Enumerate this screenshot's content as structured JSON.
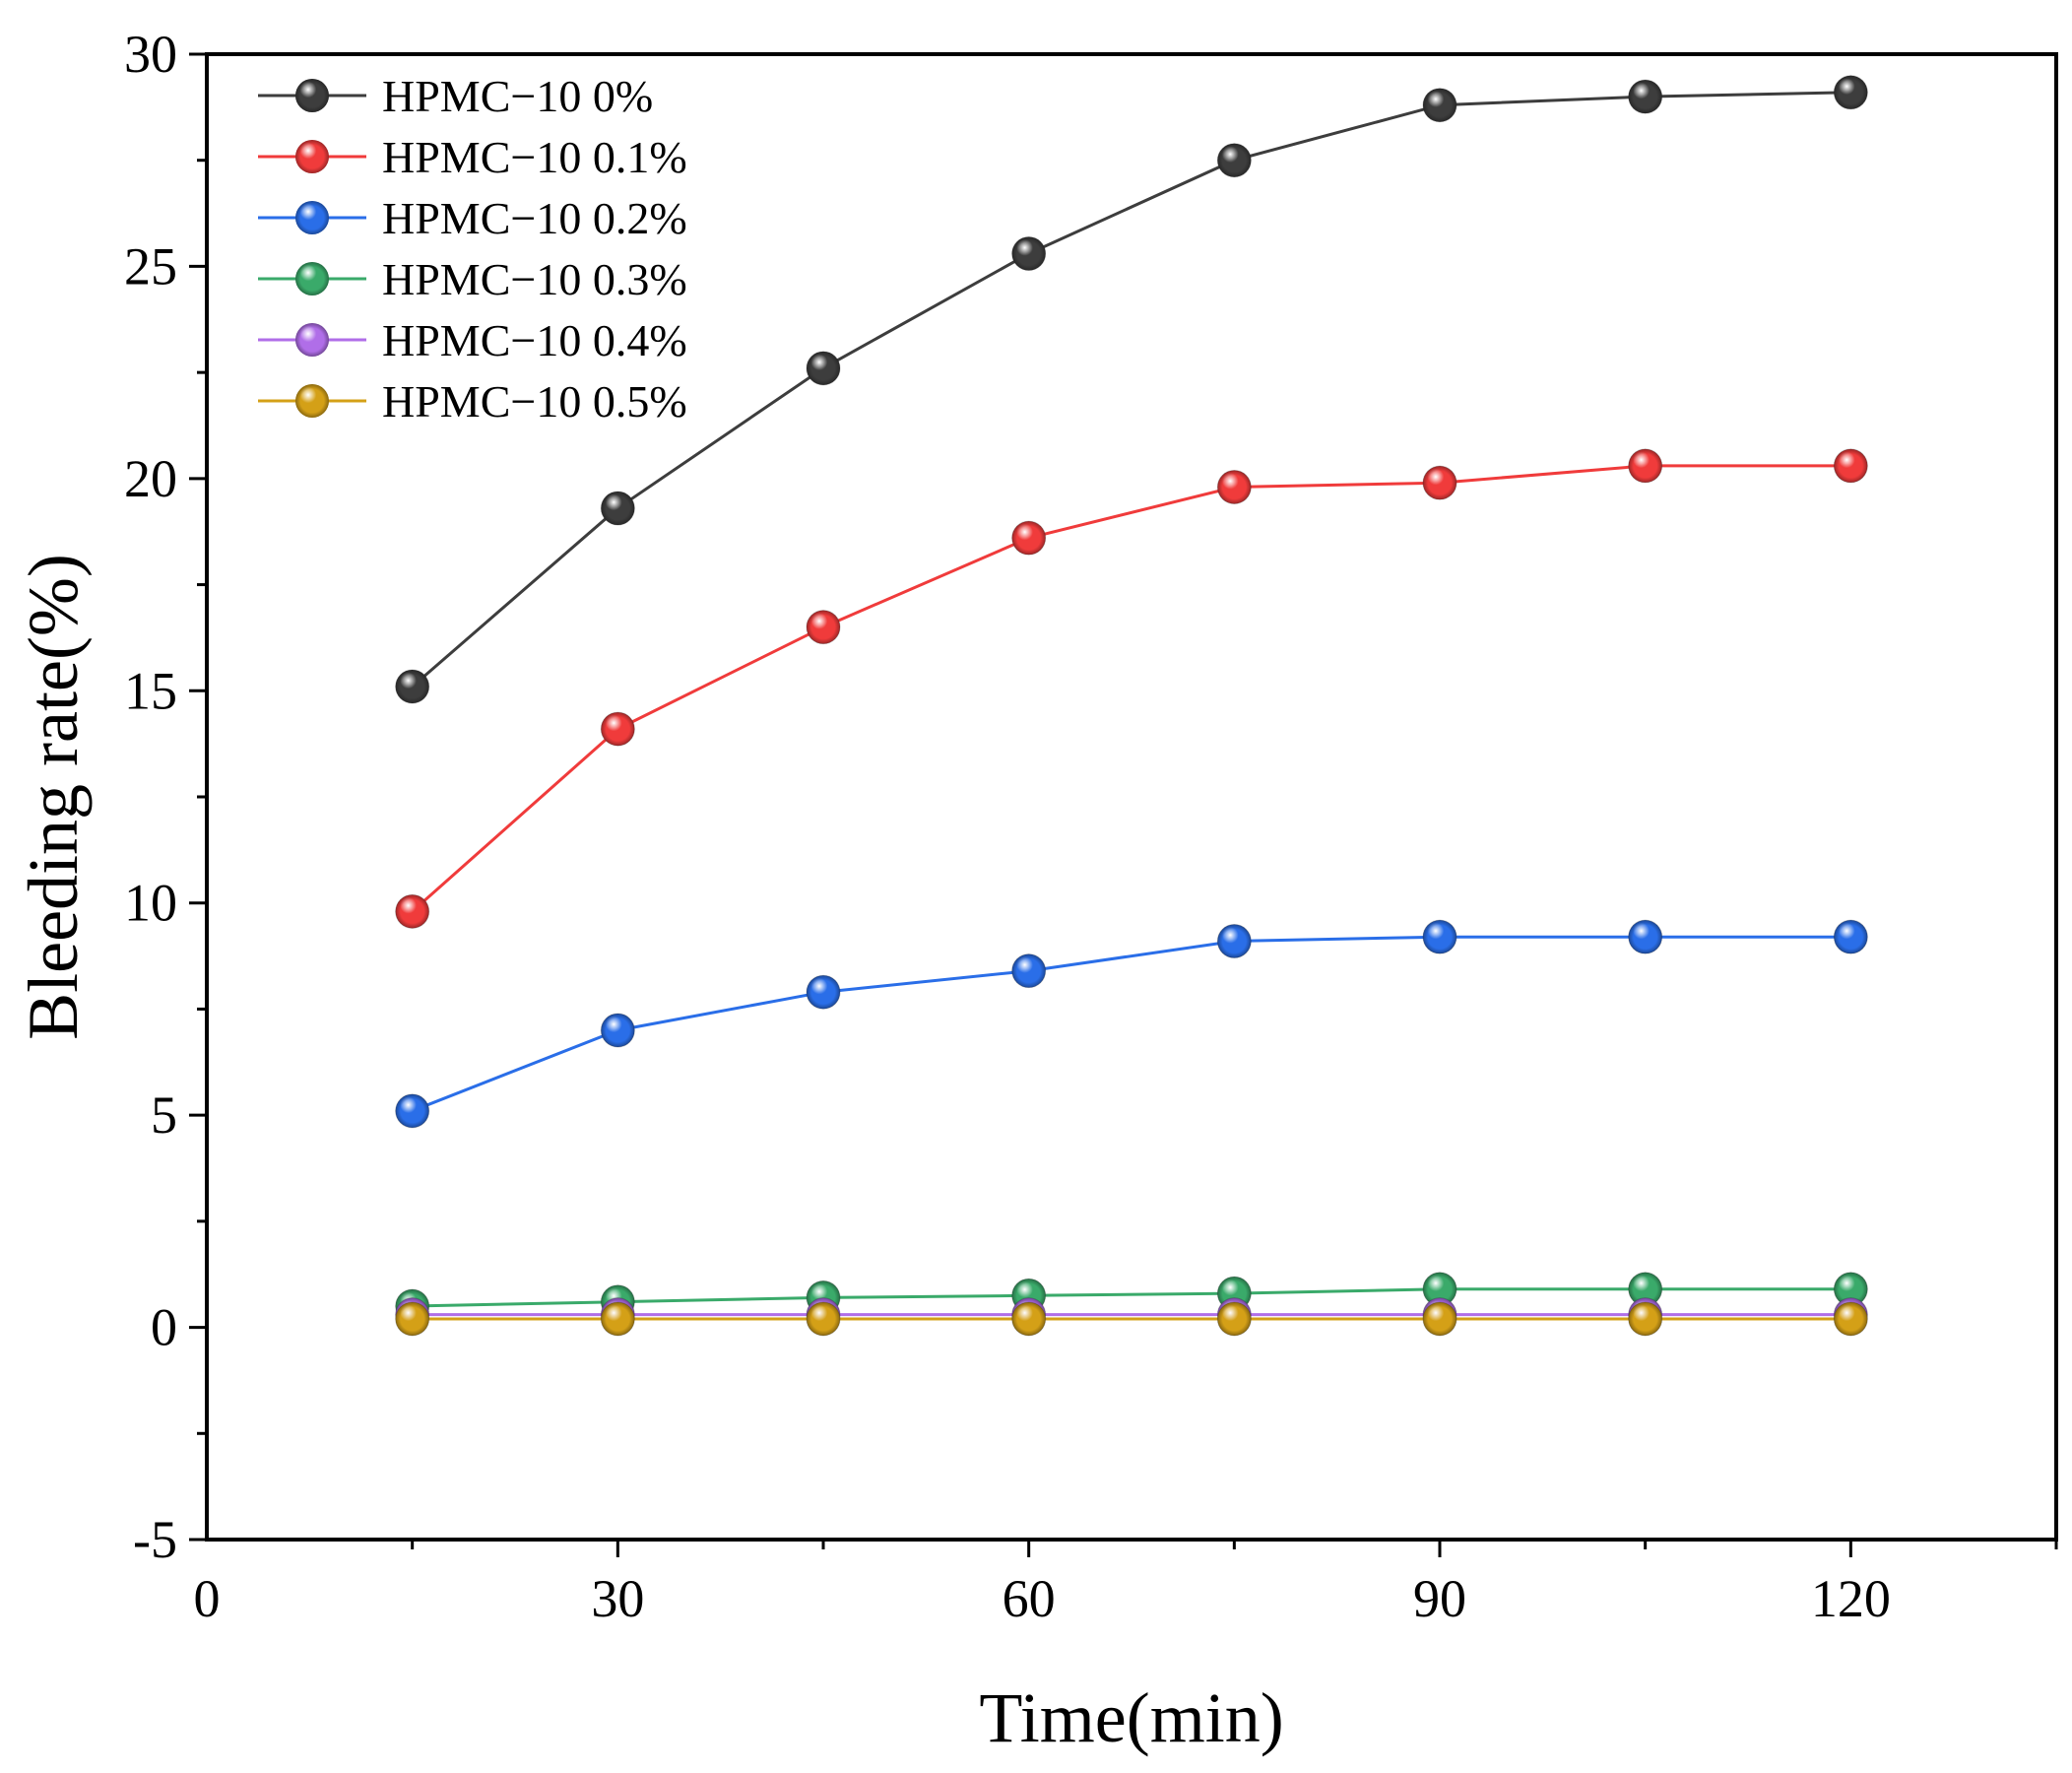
{
  "chart_data": {
    "type": "line",
    "title": "",
    "xlabel": "Time(min)",
    "ylabel": "Bleeding rate(%)",
    "xlim": [
      0,
      135
    ],
    "ylim": [
      -5,
      30
    ],
    "x_ticks": [
      0,
      30,
      60,
      90,
      120
    ],
    "x_tick_labels": [
      "0",
      "30",
      "60",
      "90",
      "120"
    ],
    "y_ticks": [
      -5,
      0,
      5,
      10,
      15,
      20,
      25,
      30
    ],
    "y_tick_labels": [
      "-5",
      "0",
      "5",
      "10",
      "15",
      "20",
      "25",
      "30"
    ],
    "grid": false,
    "legend_position": "top-left",
    "x": [
      15,
      30,
      45,
      60,
      75,
      90,
      105,
      120
    ],
    "series": [
      {
        "name": "HPMC−10 0%",
        "color": "#3d3d3d",
        "values": [
          15.1,
          19.3,
          22.6,
          25.3,
          27.5,
          28.8,
          29.0,
          29.1
        ]
      },
      {
        "name": "HPMC−10 0.1%",
        "color": "#f03b3b",
        "values": [
          9.8,
          14.1,
          16.5,
          18.6,
          19.8,
          19.9,
          20.3,
          20.3
        ]
      },
      {
        "name": "HPMC−10 0.2%",
        "color": "#2a6ee8",
        "values": [
          5.1,
          7.0,
          7.9,
          8.4,
          9.1,
          9.2,
          9.2,
          9.2
        ]
      },
      {
        "name": "HPMC−10 0.3%",
        "color": "#3aaa6a",
        "values": [
          0.5,
          0.6,
          0.7,
          0.75,
          0.8,
          0.9,
          0.9,
          0.9
        ]
      },
      {
        "name": "HPMC−10 0.4%",
        "color": "#b06ee8",
        "values": [
          0.3,
          0.3,
          0.3,
          0.3,
          0.3,
          0.3,
          0.3,
          0.3
        ]
      },
      {
        "name": "HPMC−10 0.5%",
        "color": "#d4a017",
        "values": [
          0.2,
          0.2,
          0.2,
          0.2,
          0.2,
          0.2,
          0.2,
          0.2
        ]
      }
    ]
  }
}
